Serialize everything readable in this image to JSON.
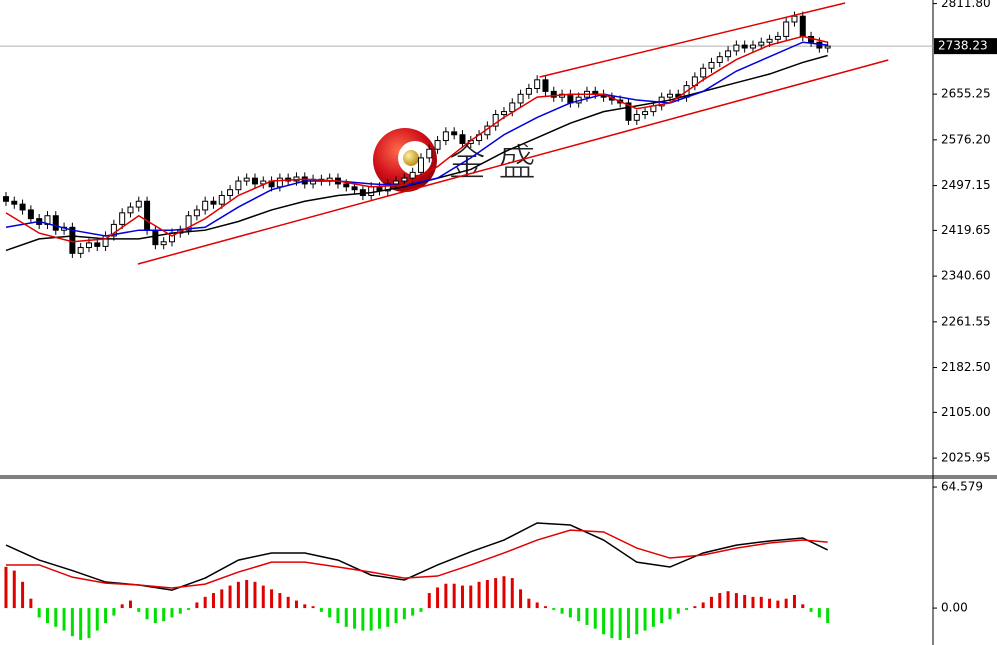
{
  "chart_data": [
    {
      "type": "candlestick",
      "xlim": [
        -0.72,
        111.57
      ],
      "ylim": [
        1995,
        2818
      ],
      "yticks": [
        {
          "value": 2811.8,
          "label": "2811.80"
        },
        {
          "value": 2655.25,
          "label": "2655.25"
        },
        {
          "value": 2576.2,
          "label": "2576.20"
        },
        {
          "value": 2497.15,
          "label": "2497.15"
        },
        {
          "value": 2419.65,
          "label": "2419.65"
        },
        {
          "value": 2340.6,
          "label": "2340.60"
        },
        {
          "value": 2261.55,
          "label": "2261.55"
        },
        {
          "value": 2182.5,
          "label": "2182.50"
        },
        {
          "value": 2105,
          "label": "2105.00"
        },
        {
          "value": 2025.95,
          "label": "2025.95"
        }
      ],
      "last_price": 2738.23,
      "watermark": "金 盛",
      "ohlc": [
        [
          2478,
          2486,
          2462,
          2470
        ],
        [
          2470,
          2478,
          2457,
          2465
        ],
        [
          2465,
          2473,
          2447,
          2455
        ],
        [
          2455,
          2463,
          2432,
          2440
        ],
        [
          2440,
          2448,
          2422,
          2430
        ],
        [
          2430,
          2453,
          2422,
          2445
        ],
        [
          2445,
          2453,
          2412,
          2420
        ],
        [
          2420,
          2433,
          2412,
          2425
        ],
        [
          2425,
          2433,
          2372,
          2380
        ],
        [
          2380,
          2398,
          2372,
          2390
        ],
        [
          2390,
          2406,
          2382,
          2398
        ],
        [
          2398,
          2406,
          2384,
          2392
        ],
        [
          2392,
          2418,
          2384,
          2410
        ],
        [
          2410,
          2438,
          2402,
          2430
        ],
        [
          2430,
          2458,
          2422,
          2450
        ],
        [
          2450,
          2468,
          2442,
          2460
        ],
        [
          2460,
          2478,
          2452,
          2470
        ],
        [
          2470,
          2478,
          2412,
          2420
        ],
        [
          2420,
          2428,
          2387,
          2395
        ],
        [
          2395,
          2408,
          2387,
          2400
        ],
        [
          2400,
          2423,
          2392,
          2415
        ],
        [
          2415,
          2428,
          2407,
          2420
        ],
        [
          2420,
          2453,
          2412,
          2445
        ],
        [
          2445,
          2463,
          2437,
          2455
        ],
        [
          2455,
          2478,
          2447,
          2470
        ],
        [
          2470,
          2478,
          2457,
          2465
        ],
        [
          2465,
          2488,
          2457,
          2480
        ],
        [
          2480,
          2498,
          2472,
          2490
        ],
        [
          2490,
          2513,
          2482,
          2505
        ],
        [
          2505,
          2518,
          2497,
          2510
        ],
        [
          2510,
          2518,
          2492,
          2500
        ],
        [
          2500,
          2513,
          2492,
          2505
        ],
        [
          2505,
          2513,
          2487,
          2495
        ],
        [
          2495,
          2518,
          2487,
          2510
        ],
        [
          2510,
          2518,
          2497,
          2505
        ],
        [
          2505,
          2520,
          2497,
          2512
        ],
        [
          2512,
          2520,
          2492,
          2500
        ],
        [
          2500,
          2516,
          2492,
          2508
        ],
        [
          2508,
          2516,
          2497,
          2505
        ],
        [
          2505,
          2518,
          2497,
          2510
        ],
        [
          2510,
          2518,
          2492,
          2500
        ],
        [
          2500,
          2508,
          2487,
          2495
        ],
        [
          2495,
          2503,
          2482,
          2490
        ],
        [
          2490,
          2498,
          2472,
          2480
        ],
        [
          2480,
          2503,
          2472,
          2495
        ],
        [
          2495,
          2503,
          2480,
          2488
        ],
        [
          2488,
          2508,
          2480,
          2500
        ],
        [
          2500,
          2513,
          2492,
          2505
        ],
        [
          2505,
          2518,
          2497,
          2510
        ],
        [
          2510,
          2528,
          2502,
          2520
        ],
        [
          2520,
          2553,
          2512,
          2545
        ],
        [
          2545,
          2568,
          2537,
          2560
        ],
        [
          2560,
          2583,
          2552,
          2575
        ],
        [
          2575,
          2598,
          2567,
          2590
        ],
        [
          2590,
          2598,
          2577,
          2585
        ],
        [
          2585,
          2593,
          2562,
          2570
        ],
        [
          2570,
          2583,
          2562,
          2575
        ],
        [
          2575,
          2593,
          2567,
          2585
        ],
        [
          2585,
          2608,
          2577,
          2600
        ],
        [
          2600,
          2628,
          2592,
          2620
        ],
        [
          2620,
          2633,
          2612,
          2625
        ],
        [
          2625,
          2648,
          2617,
          2640
        ],
        [
          2640,
          2663,
          2632,
          2655
        ],
        [
          2655,
          2673,
          2647,
          2665
        ],
        [
          2665,
          2688,
          2657,
          2680
        ],
        [
          2680,
          2688,
          2652,
          2660
        ],
        [
          2660,
          2668,
          2642,
          2650
        ],
        [
          2650,
          2663,
          2642,
          2655
        ],
        [
          2655,
          2663,
          2632,
          2640
        ],
        [
          2640,
          2658,
          2632,
          2650
        ],
        [
          2650,
          2668,
          2642,
          2660
        ],
        [
          2660,
          2668,
          2647,
          2655
        ],
        [
          2655,
          2663,
          2642,
          2650
        ],
        [
          2650,
          2658,
          2637,
          2645
        ],
        [
          2645,
          2653,
          2632,
          2640
        ],
        [
          2640,
          2648,
          2602,
          2610
        ],
        [
          2610,
          2628,
          2602,
          2620
        ],
        [
          2620,
          2633,
          2612,
          2625
        ],
        [
          2625,
          2643,
          2617,
          2635
        ],
        [
          2635,
          2658,
          2627,
          2650
        ],
        [
          2650,
          2663,
          2642,
          2655
        ],
        [
          2655,
          2663,
          2642,
          2650
        ],
        [
          2650,
          2678,
          2642,
          2670
        ],
        [
          2670,
          2693,
          2662,
          2685
        ],
        [
          2685,
          2708,
          2677,
          2700
        ],
        [
          2700,
          2718,
          2692,
          2710
        ],
        [
          2710,
          2728,
          2702,
          2720
        ],
        [
          2720,
          2738,
          2712,
          2730
        ],
        [
          2730,
          2748,
          2722,
          2740
        ],
        [
          2740,
          2748,
          2727,
          2735
        ],
        [
          2735,
          2748,
          2727,
          2740
        ],
        [
          2740,
          2753,
          2732,
          2745
        ],
        [
          2745,
          2758,
          2737,
          2750
        ],
        [
          2750,
          2763,
          2742,
          2755
        ],
        [
          2755,
          2788,
          2747,
          2780
        ],
        [
          2780,
          2798,
          2772,
          2790
        ],
        [
          2790,
          2798,
          2747,
          2755
        ],
        [
          2755,
          2763,
          2737,
          2745
        ],
        [
          2745,
          2753,
          2727,
          2735
        ],
        [
          2735,
          2746,
          2727,
          2738.23
        ]
      ],
      "series": [
        {
          "color": "#000000",
          "x": [
            0,
            4,
            8,
            12,
            16,
            20,
            24,
            28,
            32,
            36,
            40,
            44,
            48,
            52,
            56,
            60,
            64,
            68,
            72,
            76,
            80,
            84,
            88,
            92,
            96,
            99
          ],
          "values": [
            2385,
            2405,
            2410,
            2405,
            2405,
            2415,
            2420,
            2435,
            2455,
            2470,
            2480,
            2485,
            2495,
            2510,
            2525,
            2555,
            2580,
            2605,
            2625,
            2635,
            2645,
            2660,
            2675,
            2690,
            2710,
            2722
          ]
        },
        {
          "color": "#0000e0",
          "x": [
            0,
            4,
            8,
            12,
            16,
            20,
            24,
            28,
            32,
            36,
            40,
            44,
            48,
            52,
            56,
            60,
            64,
            68,
            72,
            76,
            80,
            84,
            88,
            92,
            96,
            99
          ],
          "values": [
            2425,
            2435,
            2420,
            2410,
            2420,
            2420,
            2425,
            2460,
            2490,
            2505,
            2505,
            2500,
            2497,
            2510,
            2545,
            2585,
            2615,
            2640,
            2655,
            2645,
            2640,
            2660,
            2695,
            2720,
            2745,
            2740
          ]
        },
        {
          "color": "#e00000",
          "x": [
            0,
            4,
            8,
            12,
            16,
            20,
            24,
            28,
            32,
            36,
            40,
            44,
            48,
            52,
            56,
            60,
            64,
            68,
            72,
            76,
            80,
            84,
            88,
            92,
            96,
            99
          ],
          "values": [
            2450,
            2415,
            2400,
            2405,
            2445,
            2410,
            2440,
            2480,
            2505,
            2508,
            2505,
            2495,
            2498,
            2530,
            2575,
            2615,
            2650,
            2655,
            2655,
            2630,
            2640,
            2680,
            2715,
            2740,
            2755,
            2745
          ]
        }
      ],
      "trendlines": [
        {
          "color": "#e00000",
          "x": [
            64.3,
            101.1
          ],
          "values": [
            2684.9,
            2812.8
          ]
        },
        {
          "color": "#e00000",
          "x": [
            15.9,
            106.3
          ],
          "values": [
            2361.5,
            2714.3
          ]
        }
      ]
    },
    {
      "type": "macd",
      "xlim": [
        -0.72,
        111.57
      ],
      "ylim": [
        -19.7,
        69.4
      ],
      "yticks": [
        64.579,
        {
          "value": 0,
          "label": "0.00"
        }
      ],
      "up_color": "#e00000",
      "down_color": "#00e000",
      "histogram": [
        22,
        20,
        14,
        5,
        -5,
        -8,
        -10,
        -12,
        -15,
        -17,
        -16,
        -12,
        -8,
        -4,
        2,
        4,
        -2,
        -6,
        -8,
        -7,
        -5,
        -3,
        -1,
        3,
        6,
        8,
        10,
        12,
        14,
        15,
        14,
        12,
        10,
        8,
        6,
        4,
        2,
        1,
        -2,
        -5,
        -8,
        -10,
        -11,
        -12,
        -12,
        -11,
        -10,
        -8,
        -6,
        -4,
        -2,
        8,
        11,
        13,
        13,
        12,
        12,
        14,
        15,
        16,
        17,
        16,
        10,
        5,
        3,
        1,
        -1,
        -3,
        -5,
        -7,
        -9,
        -11,
        -14,
        -16,
        -17,
        -16,
        -14,
        -12,
        -10,
        -8,
        -6,
        -3,
        -1,
        1,
        3,
        6,
        8,
        9,
        8,
        7,
        6,
        6,
        5,
        4,
        5,
        7,
        2,
        -2,
        -5,
        -8
      ],
      "series": [
        {
          "color": "#000000",
          "x": [
            0,
            4,
            8,
            12,
            16,
            20,
            24,
            28,
            32,
            36,
            40,
            44,
            48,
            52,
            56,
            60,
            64,
            68,
            72,
            76,
            80,
            84,
            88,
            92,
            96,
            99
          ],
          "values": [
            33.6,
            25.6,
            20,
            13.9,
            12.3,
            9.6,
            16,
            25.6,
            29.4,
            29.4,
            25.6,
            17.6,
            15,
            23,
            30,
            36.3,
            45.4,
            44.3,
            36.3,
            24.5,
            21.9,
            29.4,
            33.6,
            35.8,
            37.4,
            31
          ]
        },
        {
          "color": "#e00000",
          "x": [
            0,
            4,
            8,
            12,
            16,
            20,
            24,
            28,
            32,
            36,
            40,
            44,
            48,
            52,
            56,
            60,
            64,
            68,
            72,
            76,
            80,
            84,
            88,
            92,
            96,
            99
          ],
          "values": [
            23,
            23,
            16.5,
            13.3,
            12.3,
            10.7,
            12.8,
            19.2,
            24.5,
            24.5,
            21.9,
            19.2,
            16,
            17.1,
            23,
            29.4,
            36.3,
            41.6,
            40.6,
            32,
            26.7,
            28.3,
            32,
            34.7,
            36.3,
            35.2
          ]
        }
      ]
    }
  ]
}
